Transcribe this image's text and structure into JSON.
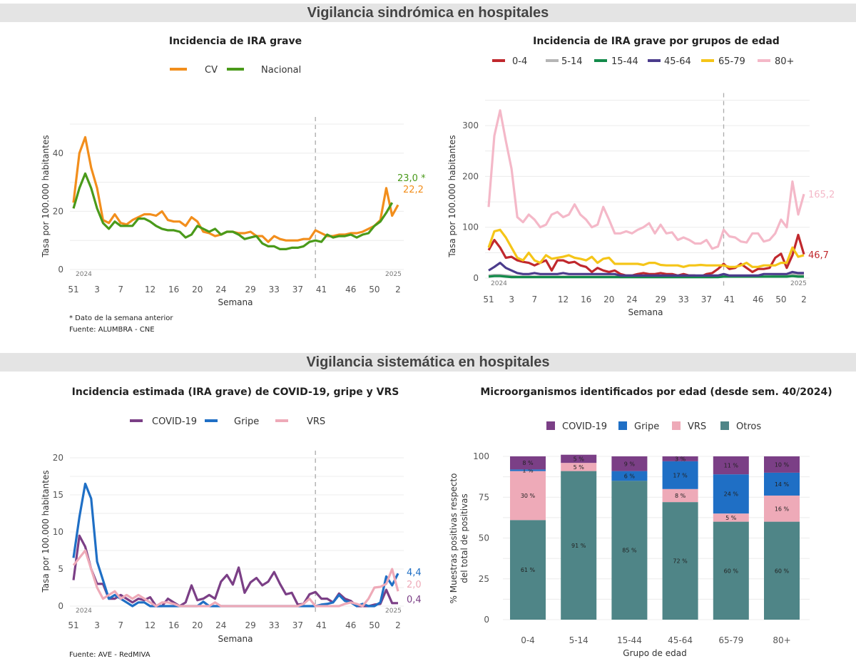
{
  "sections": {
    "syndromic_title": "Vigilancia sindrómica en hospitales",
    "systematic_title": "Vigilancia sistemática en hospitales"
  },
  "weeks": [
    "51",
    "52",
    "1",
    "2",
    "3",
    "4",
    "5",
    "6",
    "7",
    "8",
    "9",
    "10",
    "11",
    "12",
    "13",
    "14",
    "15",
    "16",
    "17",
    "18",
    "19",
    "20",
    "21",
    "22",
    "23",
    "24",
    "25",
    "26",
    "27",
    "28",
    "29",
    "30",
    "31",
    "32",
    "33",
    "34",
    "35",
    "36",
    "37",
    "38",
    "39",
    "40",
    "41",
    "42",
    "43",
    "44",
    "45",
    "46",
    "47",
    "48",
    "49",
    "50",
    "51",
    "52",
    "1",
    "2"
  ],
  "xticks": [
    "51",
    "3",
    "7",
    "12",
    "16",
    "20",
    "24",
    "29",
    "33",
    "37",
    "41",
    "46",
    "50",
    "2"
  ],
  "year_labels": [
    "2024",
    "2025"
  ],
  "chart_data": [
    {
      "type": "line",
      "title": "Incidencia de IRA grave",
      "xlabel": "Semana",
      "ylabel": "Tasa por 100.000 habitantes",
      "ylim": [
        0,
        50
      ],
      "yticks": [
        "0",
        "20",
        "40"
      ],
      "divider_week": "40",
      "series": [
        {
          "name": "CV",
          "color": "#f28e1c",
          "end_label": "22,2",
          "values": [
            23,
            40,
            45.5,
            35,
            28,
            17,
            16,
            19,
            16,
            15.5,
            17,
            18,
            19,
            19,
            18.5,
            20,
            17,
            16.5,
            16.5,
            15,
            18,
            16.5,
            13,
            12.5,
            11.5,
            12,
            13,
            13,
            12.5,
            12.5,
            13,
            11.5,
            11.5,
            9.5,
            11.5,
            10.5,
            10,
            10,
            10,
            10.5,
            10.5,
            13.5,
            12.5,
            11.5,
            11.5,
            12,
            12,
            12.5,
            12.5,
            13,
            14,
            15,
            17,
            28,
            18.5,
            22.2
          ]
        },
        {
          "name": "Nacional",
          "color": "#4a9a1a",
          "end_label": "23,0 *",
          "values": [
            21,
            28,
            33,
            28,
            21,
            16,
            14,
            16.5,
            15,
            15,
            15,
            17.5,
            17.5,
            16.5,
            15,
            14,
            13.5,
            13.5,
            13,
            11,
            12,
            15,
            14,
            13,
            14,
            12,
            13,
            13,
            12,
            10.5,
            11,
            11.5,
            9,
            8,
            8,
            7,
            7,
            7.5,
            7.5,
            8,
            9.5,
            10,
            9.5,
            12,
            11,
            11.5,
            11.5,
            12,
            11,
            12,
            12.5,
            15,
            16.5,
            19.5,
            23.0
          ]
        }
      ],
      "notes": [
        "* Dato de la semana anterior",
        "Fuente: ALUMBRA - CNE"
      ]
    },
    {
      "type": "line",
      "title": "Incidencia de IRA grave por grupos de edad",
      "xlabel": "Semana",
      "ylabel": "Tasa por 100.000 habitantes",
      "ylim": [
        0,
        350
      ],
      "yticks": [
        "0",
        "100",
        "200",
        "300"
      ],
      "divider_week": "40",
      "series": [
        {
          "name": "0-4",
          "color": "#c0282d",
          "end_label": "46,7",
          "values": [
            55,
            75,
            60,
            40,
            42,
            35,
            32,
            30,
            25,
            30,
            35,
            15,
            35,
            35,
            30,
            32,
            25,
            22,
            12,
            20,
            15,
            12,
            15,
            8,
            5,
            5,
            8,
            10,
            8,
            8,
            10,
            8,
            8,
            5,
            8,
            5,
            5,
            3,
            8,
            10,
            18,
            28,
            18,
            20,
            28,
            20,
            12,
            18,
            18,
            20,
            40,
            48,
            20,
            45,
            85,
            46.7
          ]
        },
        {
          "name": "5-14",
          "color": "#b5b5b5",
          "values": [
            5,
            6,
            6,
            5,
            4,
            3,
            3,
            3,
            3,
            3,
            3,
            3,
            3,
            3,
            3,
            3,
            3,
            3,
            3,
            3,
            3,
            3,
            3,
            2,
            2,
            2,
            2,
            2,
            2,
            2,
            2,
            2,
            2,
            2,
            2,
            2,
            2,
            2,
            2,
            2,
            3,
            3,
            3,
            3,
            3,
            3,
            3,
            3,
            3,
            3,
            4,
            4,
            4,
            8,
            6,
            7
          ]
        },
        {
          "name": "15-44",
          "color": "#138a4a",
          "values": [
            3,
            4,
            4,
            3,
            2,
            2,
            2,
            2,
            2,
            2,
            2,
            2,
            2,
            2,
            2,
            2,
            2,
            2,
            2,
            2,
            2,
            2,
            2,
            2,
            2,
            2,
            2,
            2,
            2,
            2,
            2,
            2,
            2,
            2,
            2,
            2,
            2,
            2,
            2,
            2,
            2,
            3,
            3,
            3,
            3,
            3,
            3,
            3,
            3,
            3,
            3,
            3,
            3,
            4,
            3,
            3
          ]
        },
        {
          "name": "45-64",
          "color": "#4b3c8c",
          "values": [
            15,
            22,
            30,
            20,
            15,
            10,
            8,
            8,
            10,
            8,
            8,
            8,
            8,
            10,
            8,
            8,
            8,
            8,
            8,
            8,
            8,
            8,
            8,
            5,
            5,
            5,
            5,
            5,
            5,
            5,
            5,
            5,
            5,
            5,
            5,
            5,
            5,
            5,
            5,
            5,
            5,
            8,
            5,
            5,
            5,
            5,
            5,
            5,
            8,
            8,
            8,
            8,
            8,
            12,
            10,
            10
          ]
        },
        {
          "name": "65-79",
          "color": "#f5c518",
          "values": [
            60,
            92,
            95,
            80,
            60,
            40,
            35,
            50,
            35,
            30,
            45,
            38,
            40,
            42,
            45,
            40,
            38,
            35,
            42,
            30,
            38,
            40,
            28,
            28,
            28,
            28,
            28,
            26,
            30,
            30,
            26,
            25,
            25,
            25,
            22,
            25,
            25,
            26,
            25,
            25,
            25,
            25,
            22,
            22,
            25,
            30,
            22,
            22,
            25,
            25,
            25,
            30,
            30,
            60,
            42,
            45
          ]
        },
        {
          "name": "80+",
          "color": "#f4b8c8",
          "end_label": "165,2",
          "values": [
            140,
            280,
            330,
            270,
            215,
            120,
            110,
            125,
            115,
            100,
            105,
            125,
            130,
            120,
            125,
            145,
            125,
            115,
            100,
            105,
            140,
            115,
            88,
            88,
            92,
            88,
            95,
            100,
            108,
            88,
            105,
            88,
            90,
            75,
            80,
            75,
            68,
            68,
            75,
            58,
            62,
            95,
            82,
            80,
            72,
            70,
            88,
            88,
            72,
            75,
            88,
            115,
            100,
            190,
            125,
            165.2
          ]
        }
      ]
    },
    {
      "type": "line",
      "title": "Incidencia estimada (IRA grave) de COVID-19, gripe y VRS",
      "xlabel": "Semana",
      "ylabel": "Tasa por 100.000 habitantes",
      "ylim": [
        0,
        20
      ],
      "yticks": [
        "0",
        "5",
        "10",
        "15",
        "20"
      ],
      "divider_week": "40",
      "series": [
        {
          "name": "COVID-19",
          "color": "#7b3f86",
          "end_label": "0,4",
          "values": [
            3.5,
            9.5,
            8,
            5,
            3,
            3,
            1,
            1,
            1.5,
            1,
            0.5,
            1,
            0.8,
            1.2,
            0,
            0,
            1,
            0.5,
            0,
            0.5,
            2.8,
            0.8,
            1,
            1.5,
            1,
            3.3,
            4.2,
            2.9,
            5.2,
            1.8,
            3.2,
            3.8,
            2.8,
            3.3,
            4.6,
            3,
            1.6,
            1.8,
            0.2,
            0.3,
            1.6,
            1.9,
            1,
            1,
            0.5,
            1.7,
            1,
            0.7,
            0,
            0,
            0,
            0.2,
            0.3,
            2.2,
            0.4,
            0.4
          ]
        },
        {
          "name": "Gripe",
          "color": "#1f6fc5",
          "end_label": "4,4",
          "values": [
            6.5,
            12,
            16.5,
            14.5,
            6,
            3.5,
            1,
            1.5,
            1,
            0.5,
            0,
            0.5,
            0.5,
            0,
            0,
            0,
            0,
            0,
            0,
            0,
            0,
            0,
            0.6,
            0,
            0,
            0,
            0,
            0,
            0,
            0,
            0,
            0,
            0,
            0,
            0,
            0,
            0,
            0,
            0,
            0,
            0,
            0,
            0.2,
            0.3,
            0.5,
            1.5,
            0.7,
            0.5,
            0,
            0.3,
            0,
            0,
            0.5,
            4,
            2.8,
            4.4
          ]
        },
        {
          "name": "VRS",
          "color": "#eeaab8",
          "end_label": "2,0",
          "values": [
            5.5,
            6.5,
            7.5,
            5,
            2.5,
            1,
            1.5,
            2,
            1,
            1.5,
            1,
            1.5,
            1,
            0.5,
            0,
            0.5,
            0.5,
            0.3,
            0,
            0,
            0,
            0,
            0,
            0,
            0.5,
            0,
            0,
            0,
            0,
            0,
            0,
            0,
            0,
            0,
            0,
            0,
            0,
            0,
            0,
            0.3,
            1,
            0,
            0,
            0,
            0,
            0,
            0.3,
            0.5,
            0.3,
            0,
            1,
            2.5,
            2.6,
            3,
            5,
            2.0
          ]
        }
      ],
      "notes": [
        "Fuente: AVE - RedMIVA"
      ]
    },
    {
      "type": "bar",
      "stacked": true,
      "title": "Microorganismos identificados por edad (desde sem. 40/2024)",
      "xlabel": "Grupo de edad",
      "ylabel": [
        "% Muestras positivas respecto",
        "del total de positivas"
      ],
      "ylim": [
        0,
        100
      ],
      "yticks": [
        "0",
        "25",
        "50",
        "75",
        "100"
      ],
      "categories": [
        "0-4",
        "5-14",
        "15-44",
        "45-64",
        "65-79",
        "80+"
      ],
      "series": [
        {
          "name": "Otros",
          "color": "#4f8587",
          "values": [
            61,
            91,
            85,
            72,
            60,
            60
          ]
        },
        {
          "name": "VRS",
          "color": "#eeaab8",
          "values": [
            30,
            5,
            0,
            8,
            5,
            16
          ]
        },
        {
          "name": "Gripe",
          "color": "#1f6fc5",
          "values": [
            1,
            0,
            6,
            17,
            24,
            14
          ]
        },
        {
          "name": "COVID-19",
          "color": "#7b3f86",
          "values": [
            8,
            5,
            9,
            3,
            11,
            10
          ]
        }
      ],
      "legend_order": [
        "COVID-19",
        "Gripe",
        "VRS",
        "Otros"
      ]
    }
  ]
}
